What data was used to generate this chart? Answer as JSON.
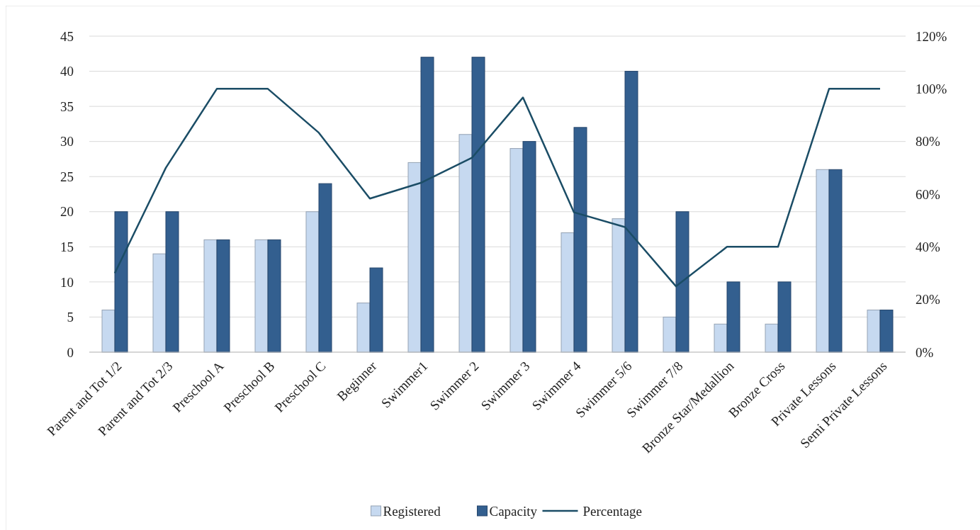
{
  "chart_data": {
    "type": "bar",
    "categories": [
      "Parent and Tot 1/2",
      "Parent and Tot 2/3",
      "Preschool A",
      "Preschool B",
      "Preschool C",
      "Beginner",
      "Swimmer1",
      "Swimmer 2",
      "Swimmer 3",
      "Swimmer 4",
      "Swimmer 5/6",
      "Swimmer 7/8",
      "Bronze Star/Medallion",
      "Bronze Cross",
      "Private Lessons",
      "Semi Private Lessons"
    ],
    "series": [
      {
        "name": "Registered",
        "color": "#c6d9f0",
        "values": [
          6,
          14,
          16,
          16,
          20,
          7,
          27,
          31,
          29,
          17,
          19,
          5,
          4,
          4,
          26,
          6
        ]
      },
      {
        "name": "Capacity",
        "color": "#335f8f",
        "values": [
          20,
          20,
          16,
          16,
          24,
          12,
          42,
          42,
          30,
          32,
          40,
          20,
          10,
          10,
          26,
          6
        ]
      },
      {
        "name": "Percentage",
        "type": "line",
        "axis": "y2",
        "color": "#1b4d66",
        "values": [
          30,
          70,
          100,
          100,
          83.3,
          58.3,
          64.3,
          73.8,
          96.7,
          53.1,
          47.5,
          25,
          40,
          40,
          100,
          100
        ]
      }
    ],
    "ylim": [
      0,
      45
    ],
    "yticks": [
      0,
      5,
      10,
      15,
      20,
      25,
      30,
      35,
      40,
      45
    ],
    "y2lim": [
      0,
      120
    ],
    "y2ticks": [
      {
        "value": 0,
        "label": "0%"
      },
      {
        "value": 20,
        "label": "20%"
      },
      {
        "value": 40,
        "label": "40%"
      },
      {
        "value": 60,
        "label": "60%"
      },
      {
        "value": 80,
        "label": "80%"
      },
      {
        "value": 100,
        "label": "100%"
      },
      {
        "value": 120,
        "label": "120%"
      }
    ],
    "grid": "y",
    "legend": "bottom",
    "marker": "none",
    "line_style": "solid"
  }
}
